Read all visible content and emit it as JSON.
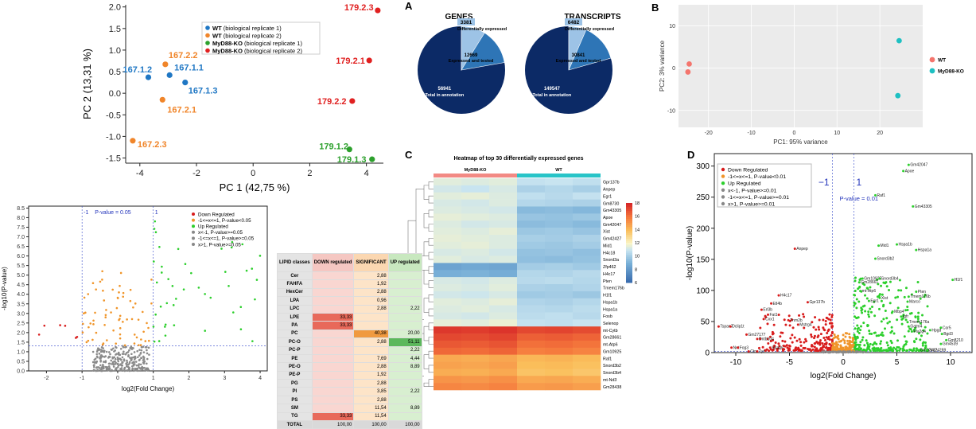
{
  "chart_data": [
    {
      "type": "scatter",
      "title": "",
      "xlabel": "PC 1 (42,75 %)",
      "ylabel": "PC 2 (13,31 %)",
      "xlim": [
        -4.5,
        4.6
      ],
      "ylim": [
        -1.62,
        2.05
      ],
      "xticks": [
        -4,
        -2,
        0,
        2,
        4
      ],
      "yticks": [
        -1.5,
        -1.0,
        -0.5,
        0.0,
        0.5,
        1.0,
        1.5,
        2.0
      ],
      "legend": [
        {
          "name": "WT",
          "note": "(biological replicate 1)",
          "color": "#1f77c4"
        },
        {
          "name": "WT",
          "note": "(biological replicate 2)",
          "color": "#f0852a"
        },
        {
          "name": "MyD88-KO",
          "note": "(biological replicate 1)",
          "color": "#2ca02c"
        },
        {
          "name": "MyD88-KO",
          "note": "(biological replicate 2)",
          "color": "#e02020"
        }
      ],
      "points": [
        {
          "label": "167.1.2",
          "x": -3.7,
          "y": 0.37,
          "group": 0
        },
        {
          "label": "167.1.1",
          "x": -2.95,
          "y": 0.42,
          "group": 0
        },
        {
          "label": "167.1.3",
          "x": -2.4,
          "y": 0.25,
          "group": 0
        },
        {
          "label": "167.2.2",
          "x": -3.1,
          "y": 0.67,
          "group": 1
        },
        {
          "label": "167.2.1",
          "x": -3.2,
          "y": -0.15,
          "group": 1
        },
        {
          "label": "167.2.3",
          "x": -4.25,
          "y": -1.1,
          "group": 1
        },
        {
          "label": "179.1.2",
          "x": 3.4,
          "y": -1.3,
          "group": 2
        },
        {
          "label": "179.1.3",
          "x": 4.2,
          "y": -1.53,
          "group": 2
        },
        {
          "label": "179.2.3",
          "x": 4.4,
          "y": 1.92,
          "group": 3
        },
        {
          "label": "179.2.1",
          "x": 4.1,
          "y": 0.76,
          "group": 3
        },
        {
          "label": "179.2.2",
          "x": 3.5,
          "y": -0.18,
          "group": 3
        }
      ]
    },
    {
      "type": "pie",
      "panel": "A",
      "title": "GENES",
      "slices": [
        {
          "value": 3381,
          "label": "Differentially expressed",
          "color": "#9dc3e6"
        },
        {
          "value": 12669,
          "label": "Expressed and tested",
          "color": "#2e75b6"
        },
        {
          "value": 56941,
          "label": "Total in annotation",
          "color": "#0c2a66"
        }
      ]
    },
    {
      "type": "pie",
      "title": "TRANSCRIPTS",
      "slices": [
        {
          "value": 6482,
          "label": "Differentially expressed",
          "color": "#9dc3e6"
        },
        {
          "value": 30841,
          "label": "Expressed and tested",
          "color": "#2e75b6"
        },
        {
          "value": 149547,
          "label": "Total in annotation",
          "color": "#0c2a66"
        }
      ]
    },
    {
      "type": "scatter",
      "panel": "B",
      "xlabel": "PC1: 95% variance",
      "ylabel": "PC2: 3% variance",
      "xlim": [
        -27,
        30
      ],
      "ylim": [
        -14,
        15
      ],
      "xticks": [
        -20,
        -10,
        0,
        10,
        20
      ],
      "yticks": [
        -10,
        0,
        10
      ],
      "legend": [
        {
          "name": "WT",
          "color": "#f4756d"
        },
        {
          "name": "MyD88-KO",
          "color": "#1ec0c2"
        }
      ],
      "points": [
        {
          "x": -24.5,
          "y": 1.0,
          "group": 0
        },
        {
          "x": -24.8,
          "y": -0.9,
          "group": 0
        },
        {
          "x": 24.5,
          "y": 6.5,
          "group": 1
        },
        {
          "x": 24.2,
          "y": -6.5,
          "group": 1
        }
      ]
    },
    {
      "type": "heatmap",
      "panel": "C",
      "title": "Heatmap of top 30 differentially expressed genes",
      "columns": [
        "MyD88-KO",
        "WT"
      ],
      "rows": [
        "Gpr137b",
        "Anpep",
        "Egr1",
        "Gm8730",
        "Gm43305",
        "Apoe",
        "Gm42047",
        "Xist",
        "Gm42427",
        "Mid1",
        "H4c18",
        "Snord3a",
        "Zfp462",
        "H4c17",
        "Pten",
        "Tmem176b",
        "H1f1",
        "Hspa1b",
        "Hspa1a",
        "Fosb",
        "Selenop",
        "mt-Cytb",
        "Gm28661",
        "mt-Atp6",
        "Gm10925",
        "Raf1",
        "Snord3b2",
        "Snord3b4",
        "mt-Nd3",
        "Gm28438"
      ],
      "colorbar": {
        "min": 6,
        "max": 18,
        "ticks": [
          6,
          8,
          10,
          12,
          14,
          16,
          18
        ]
      },
      "values": [
        [
          11.5,
          11.4,
          11.5,
          10.9,
          11.0,
          10.8
        ],
        [
          11.2,
          11.0,
          11.3,
          10.3,
          10.5,
          10.2
        ],
        [
          11.5,
          11.6,
          11.4,
          10.8,
          10.6,
          10.9
        ],
        [
          11.3,
          11.2,
          11.4,
          10.5,
          10.4,
          10.3
        ],
        [
          11.4,
          11.3,
          11.2,
          9.4,
          9.5,
          9.3
        ],
        [
          11.6,
          11.5,
          11.4,
          9.8,
          9.7,
          9.9
        ],
        [
          11.4,
          11.2,
          11.3,
          9.5,
          9.6,
          9.4
        ],
        [
          11.5,
          11.4,
          11.6,
          9.9,
          10.0,
          9.8
        ],
        [
          11.6,
          11.5,
          11.4,
          10.2,
          10.1,
          10.3
        ],
        [
          11.5,
          11.6,
          11.4,
          10.0,
          9.9,
          10.1
        ],
        [
          11.3,
          11.4,
          11.2,
          9.7,
          9.8,
          9.6
        ],
        [
          11.5,
          11.3,
          11.4,
          9.6,
          9.5,
          9.7
        ],
        [
          8.5,
          8.7,
          8.6,
          10.1,
          10.2,
          10.0
        ],
        [
          9.0,
          9.1,
          8.9,
          10.5,
          10.4,
          10.6
        ],
        [
          11.3,
          11.2,
          11.4,
          10.6,
          10.7,
          10.5
        ],
        [
          11.4,
          11.3,
          11.5,
          10.3,
          10.2,
          10.4
        ],
        [
          11.2,
          11.1,
          11.3,
          10.0,
          10.1,
          9.9
        ],
        [
          11.5,
          11.4,
          11.6,
          10.4,
          10.3,
          10.5
        ],
        [
          11.4,
          11.5,
          11.3,
          10.6,
          10.5,
          10.7
        ],
        [
          11.3,
          11.2,
          11.4,
          10.7,
          10.8,
          10.6
        ],
        [
          11.6,
          11.5,
          11.7,
          10.9,
          10.8,
          11.0
        ],
        [
          17.6,
          17.5,
          17.7,
          17.2,
          17.3,
          17.1
        ],
        [
          17.2,
          17.1,
          17.3,
          16.6,
          16.7,
          16.5
        ],
        [
          16.8,
          16.7,
          16.9,
          16.2,
          16.3,
          16.1
        ],
        [
          16.4,
          16.3,
          16.5,
          15.8,
          15.9,
          15.7
        ],
        [
          14.6,
          14.5,
          14.7,
          14.2,
          14.3,
          14.1
        ],
        [
          14.8,
          14.7,
          14.9,
          14.0,
          14.1,
          13.9
        ],
        [
          14.5,
          14.4,
          14.6,
          13.8,
          13.9,
          13.7
        ],
        [
          15.2,
          15.1,
          15.3,
          14.6,
          14.7,
          14.5
        ],
        [
          15.6,
          15.5,
          15.7,
          15.0,
          15.1,
          14.9
        ]
      ]
    },
    {
      "type": "scatter",
      "panel": "D",
      "xlabel": "log2(Fold Change)",
      "ylabel": "-log10(P-value)",
      "xlim": [
        -12,
        12
      ],
      "ylim": [
        0,
        320
      ],
      "xticks": [
        -10,
        -5,
        0,
        5,
        10
      ],
      "yticks": [
        0,
        50,
        100,
        150,
        200,
        250,
        300
      ],
      "thresholds": {
        "fc_low": "−1",
        "fc_high": "1",
        "pvalue_label": "P-value = 0.01"
      },
      "legend": [
        "Down Regulated",
        "-1<=x<=1, P-value<0.01",
        "Up Regulated",
        "x<-1, P-value>=0.01",
        "-1<=x<=1, P-value>=0.01",
        "x>1, P-value>=0.01"
      ],
      "legend_colors": [
        "#d81c1c",
        "#f0952a",
        "#2ccf2c",
        "#888888",
        "#888888",
        "#888888"
      ],
      "labels": [
        {
          "text": "Gm42047",
          "x": 6.1,
          "y": 302
        },
        {
          "text": "Apoe",
          "x": 5.6,
          "y": 292
        },
        {
          "text": "Raf1",
          "x": 3.0,
          "y": 253
        },
        {
          "text": "Gm43305",
          "x": 6.5,
          "y": 235
        },
        {
          "text": "Anpep",
          "x": -4.5,
          "y": 167
        },
        {
          "text": "Mid1",
          "x": 3.3,
          "y": 172
        },
        {
          "text": "Hspa1b",
          "x": 5.0,
          "y": 174
        },
        {
          "text": "Hspa1a",
          "x": 6.8,
          "y": 165
        },
        {
          "text": "Snord3b2",
          "x": 3.0,
          "y": 151
        },
        {
          "text": "H1f1",
          "x": 10.2,
          "y": 117
        },
        {
          "text": "Gm10925",
          "x": 1.8,
          "y": 119
        },
        {
          "text": "Snord3b4",
          "x": 3.4,
          "y": 119
        },
        {
          "text": "Gm28661",
          "x": 1.5,
          "y": 113
        },
        {
          "text": "mt-Atp6",
          "x": 1.6,
          "y": 99
        },
        {
          "text": "Pten",
          "x": 6.8,
          "y": 98
        },
        {
          "text": "Tmem176b",
          "x": 6.1,
          "y": 90
        },
        {
          "text": "Marco",
          "x": 6.0,
          "y": 82
        },
        {
          "text": "Xist",
          "x": 3.4,
          "y": 88
        },
        {
          "text": "Egr1",
          "x": 2.4,
          "y": 83
        },
        {
          "text": "H4c17",
          "x": -6.0,
          "y": 92
        },
        {
          "text": "Gpr137b",
          "x": -3.3,
          "y": 81
        },
        {
          "text": "Etl4b",
          "x": -6.7,
          "y": 79
        },
        {
          "text": "Erl3b",
          "x": -7.6,
          "y": 69
        },
        {
          "text": "Fat1",
          "x": -7.0,
          "y": 61
        },
        {
          "text": "Cxx1",
          "x": -7.4,
          "y": 54
        },
        {
          "text": "Mbp4",
          "x": 4.6,
          "y": 66
        },
        {
          "text": "Igfr",
          "x": 5.4,
          "y": 58
        },
        {
          "text": "Tmem176a",
          "x": 6.0,
          "y": 49
        },
        {
          "text": "Gatm4",
          "x": 6.1,
          "y": 42
        },
        {
          "text": "Cor5",
          "x": 9.1,
          "y": 40
        },
        {
          "text": "Hpgd",
          "x": 8.1,
          "y": 36
        },
        {
          "text": "Pla2g4",
          "x": 6.4,
          "y": 34
        },
        {
          "text": "Tnm2b",
          "x": -5.1,
          "y": 52
        },
        {
          "text": "Mstrg4",
          "x": -4.2,
          "y": 45
        },
        {
          "text": "Tspan7",
          "x": -11.6,
          "y": 42
        },
        {
          "text": "Dclip1t",
          "x": -10.5,
          "y": 42
        },
        {
          "text": "Gm27177",
          "x": -9.0,
          "y": 29
        },
        {
          "text": "Dntb104",
          "x": -8.0,
          "y": 22
        },
        {
          "text": "Nnt",
          "x": -10.4,
          "y": 8
        },
        {
          "text": "Fog3",
          "x": -9.8,
          "y": 8
        },
        {
          "text": "Ctn",
          "x": -8.8,
          "y": 2
        },
        {
          "text": "Tyz",
          "x": -8.0,
          "y": 2
        },
        {
          "text": "Straq6",
          "x": -6.8,
          "y": 8
        },
        {
          "text": "Bgd3",
          "x": 9.2,
          "y": 30
        },
        {
          "text": "Gm8210",
          "x": 9.6,
          "y": 20
        },
        {
          "text": "Gm4539",
          "x": 9.1,
          "y": 14
        },
        {
          "text": "Gm22422",
          "x": 7.0,
          "y": 4
        },
        {
          "text": "Gm24289",
          "x": 7.8,
          "y": 4
        }
      ]
    },
    {
      "type": "scatter",
      "xlabel": "log2(Fold Change)",
      "ylabel": "-log10(P-value)",
      "xlim": [
        -2.5,
        4.2
      ],
      "ylim": [
        0,
        8.6
      ],
      "xticks": [
        -2,
        -1,
        0,
        1,
        2,
        3,
        4
      ],
      "yticks": [
        0.0,
        0.5,
        1.0,
        1.5,
        2.0,
        2.5,
        3.0,
        3.5,
        4.0,
        4.5,
        5.0,
        5.5,
        6.0,
        6.5,
        7.0,
        7.5,
        8.0,
        8.5
      ],
      "thresholds": {
        "fc_low": "-1",
        "fc_high": "1",
        "pvalue_label": "P-value = 0.05"
      },
      "legend": [
        "Down Regulated",
        "-1<=x<=1, P-value<0.05",
        "Up Regulated",
        "x<-1, P-value>=0.05",
        "-1<=x<=1, P-value>=0.05",
        "x>1, P-value>=0.05"
      ],
      "legend_colors": [
        "#d81c1c",
        "#f0952a",
        "#2ccf2c",
        "#888888",
        "#888888",
        "#888888"
      ]
    },
    {
      "type": "table",
      "headers": [
        "LIPID classes",
        "DOWN regulated",
        "SIGNIFICANT",
        "UP regulated"
      ],
      "rows": [
        [
          "Cer",
          "",
          "2,88",
          ""
        ],
        [
          "FAHFA",
          "",
          "1,92",
          ""
        ],
        [
          "HexCer",
          "",
          "2,88",
          ""
        ],
        [
          "LPA",
          "",
          "0,96",
          ""
        ],
        [
          "LPC",
          "",
          "2,88",
          "2,22"
        ],
        [
          "LPE",
          "33,33",
          "",
          ""
        ],
        [
          "PA",
          "33,33",
          "",
          ""
        ],
        [
          "PC",
          "",
          "40,38",
          "20,00"
        ],
        [
          "PC-O",
          "",
          "2,88",
          "51,11"
        ],
        [
          "PC-P",
          "",
          "",
          "2,22"
        ],
        [
          "PE",
          "",
          "7,69",
          "4,44"
        ],
        [
          "PE-O",
          "",
          "2,88",
          "8,89"
        ],
        [
          "PE-P",
          "",
          "1,92",
          ""
        ],
        [
          "PG",
          "",
          "2,88",
          ""
        ],
        [
          "PI",
          "",
          "3,85",
          "2,22"
        ],
        [
          "PS",
          "",
          "2,88",
          ""
        ],
        [
          "SM",
          "",
          "11,54",
          "8,89"
        ],
        [
          "TG",
          "33,33",
          "11,54",
          ""
        ],
        [
          "TOTAL",
          "100,00",
          "100,00",
          "100,00"
        ]
      ]
    }
  ],
  "panel_letters": {
    "a": "A",
    "b": "B",
    "c": "C",
    "d": "D"
  }
}
